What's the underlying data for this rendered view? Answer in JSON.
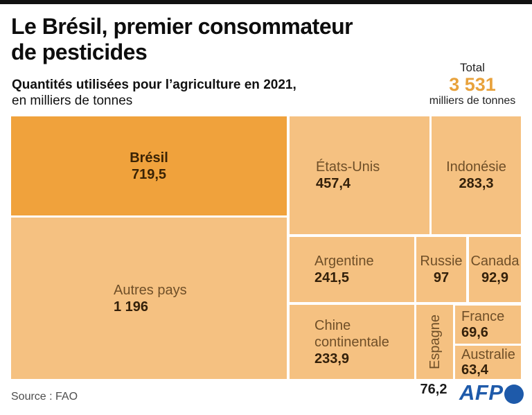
{
  "header": {
    "title_line1": "Le Brésil, premier consommateur",
    "title_line2": "de pesticides",
    "subtitle_bold": "Quantités utilisées pour l’agriculture en 2021,",
    "subtitle_regular": "en milliers de tonnes",
    "total_label": "Total",
    "total_value": "3 531",
    "total_unit": "milliers de tonnes"
  },
  "colors": {
    "highlight_cell": "#F0A23C",
    "cell": "#F5C181",
    "total_accent": "#E8A23C",
    "afp_blue": "#1E5AAA",
    "top_bar": "#111111"
  },
  "chart_data": {
    "type": "treemap",
    "title": "Le Brésil, premier consommateur de pesticides",
    "subtitle": "Quantités utilisées pour l’agriculture en 2021, en milliers de tonnes",
    "total": 3531,
    "unit": "milliers de tonnes",
    "source": "FAO",
    "items": [
      {
        "label": "Brésil",
        "value": 719.5,
        "display": "719,5",
        "highlight": true
      },
      {
        "label": "Autres pays",
        "value": 1196,
        "display": "1 196",
        "highlight": false
      },
      {
        "label": "États-Unis",
        "value": 457.4,
        "display": "457,4",
        "highlight": false
      },
      {
        "label": "Indonésie",
        "value": 283.3,
        "display": "283,3",
        "highlight": false
      },
      {
        "label": "Argentine",
        "value": 241.5,
        "display": "241,5",
        "highlight": false
      },
      {
        "label": "Russie",
        "value": 97,
        "display": "97",
        "highlight": false
      },
      {
        "label": "Canada",
        "value": 92.9,
        "display": "92,9",
        "highlight": false
      },
      {
        "label": "Chine continentale",
        "value": 233.9,
        "display": "233,9",
        "highlight": false
      },
      {
        "label": "Espagne",
        "value": 76.2,
        "display": "76,2",
        "highlight": false
      },
      {
        "label": "France",
        "value": 69.6,
        "display": "69,6",
        "highlight": false
      },
      {
        "label": "Australie",
        "value": 63.4,
        "display": "63,4",
        "highlight": false
      }
    ]
  },
  "footer": {
    "source": "Source : FAO",
    "logo_text": "AFP"
  }
}
